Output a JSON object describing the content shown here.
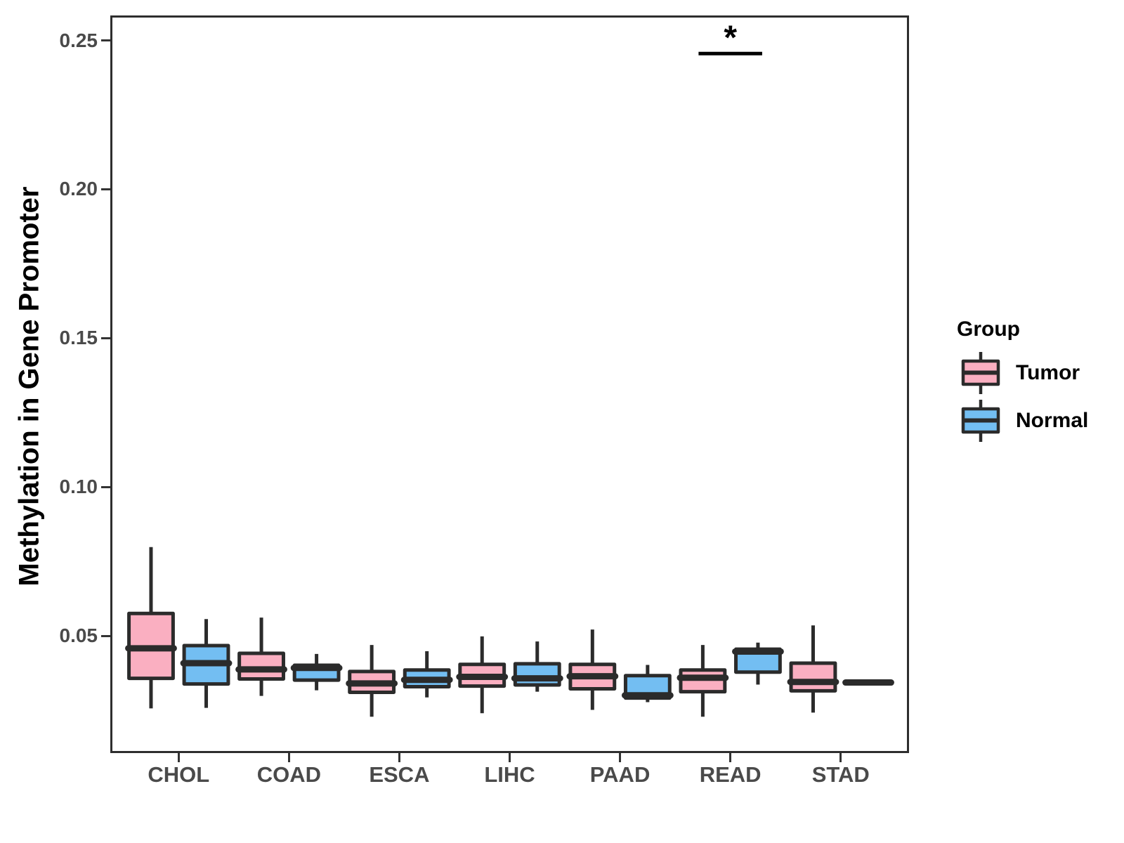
{
  "chart_data": {
    "type": "boxplot",
    "title": "",
    "xlabel": "",
    "ylabel": "Methylation in Gene Promoter",
    "categories": [
      "CHOL",
      "COAD",
      "ESCA",
      "LIHC",
      "PAAD",
      "READ",
      "STAD"
    ],
    "groups": [
      {
        "name": "Tumor",
        "color": "#FAAFC1"
      },
      {
        "name": "Normal",
        "color": "#73BEF2"
      }
    ],
    "yticks": [
      0.05,
      0.1,
      0.15,
      0.2,
      0.25
    ],
    "ytick_labels": [
      "0.05",
      "0.10",
      "0.15",
      "0.20",
      "0.25"
    ],
    "ylim": [
      0.0113,
      0.2577
    ],
    "grid": false,
    "legend_position": "right",
    "series": [
      {
        "category": "CHOL",
        "group": "Tumor",
        "min": 0.0256,
        "q1": 0.0357,
        "median": 0.0458,
        "q3": 0.0575,
        "max": 0.0798
      },
      {
        "category": "CHOL",
        "group": "Normal",
        "min": 0.0258,
        "q1": 0.0338,
        "median": 0.0408,
        "q3": 0.0467,
        "max": 0.0556
      },
      {
        "category": "COAD",
        "group": "Tumor",
        "min": 0.0298,
        "q1": 0.0355,
        "median": 0.0387,
        "q3": 0.0441,
        "max": 0.0561
      },
      {
        "category": "COAD",
        "group": "Normal",
        "min": 0.0317,
        "q1": 0.0351,
        "median": 0.0392,
        "q3": 0.0401,
        "max": 0.0439
      },
      {
        "category": "ESCA",
        "group": "Tumor",
        "min": 0.0228,
        "q1": 0.031,
        "median": 0.034,
        "q3": 0.038,
        "max": 0.0469
      },
      {
        "category": "ESCA",
        "group": "Normal",
        "min": 0.0293,
        "q1": 0.0329,
        "median": 0.0352,
        "q3": 0.0385,
        "max": 0.0448
      },
      {
        "category": "LIHC",
        "group": "Tumor",
        "min": 0.024,
        "q1": 0.0331,
        "median": 0.0362,
        "q3": 0.0404,
        "max": 0.0498
      },
      {
        "category": "LIHC",
        "group": "Normal",
        "min": 0.0312,
        "q1": 0.0335,
        "median": 0.0357,
        "q3": 0.0406,
        "max": 0.0481
      },
      {
        "category": "PAAD",
        "group": "Tumor",
        "min": 0.0251,
        "q1": 0.0322,
        "median": 0.0364,
        "q3": 0.0404,
        "max": 0.0521
      },
      {
        "category": "PAAD",
        "group": "Normal",
        "min": 0.0277,
        "q1": 0.0291,
        "median": 0.03,
        "q3": 0.0366,
        "max": 0.0402
      },
      {
        "category": "READ",
        "group": "Tumor",
        "min": 0.0228,
        "q1": 0.0312,
        "median": 0.0359,
        "q3": 0.0385,
        "max": 0.0469
      },
      {
        "category": "READ",
        "group": "Normal",
        "min": 0.0336,
        "q1": 0.0378,
        "median": 0.0447,
        "q3": 0.0455,
        "max": 0.0477
      },
      {
        "category": "STAD",
        "group": "Tumor",
        "min": 0.0242,
        "q1": 0.0315,
        "median": 0.0345,
        "q3": 0.0408,
        "max": 0.0535
      },
      {
        "category": "STAD",
        "group": "Normal",
        "min": 0.0343,
        "q1": 0.0343,
        "median": 0.0343,
        "q3": 0.0343,
        "max": 0.0343
      }
    ],
    "annotation": {
      "label": "*",
      "category": "READ",
      "y": 0.2456
    }
  },
  "legend": {
    "title": "Group",
    "items": [
      {
        "label": "Tumor",
        "color": "#FAAFC1"
      },
      {
        "label": "Normal",
        "color": "#73BEF2"
      }
    ]
  },
  "style": {
    "box_stroke": "#2B2B2B",
    "panel_border": "#2E2E2E",
    "axis_text_color": "#4A4A4A",
    "tick_color": "#333333",
    "annotation_color": "#000000",
    "background": "#FFFFFF"
  }
}
